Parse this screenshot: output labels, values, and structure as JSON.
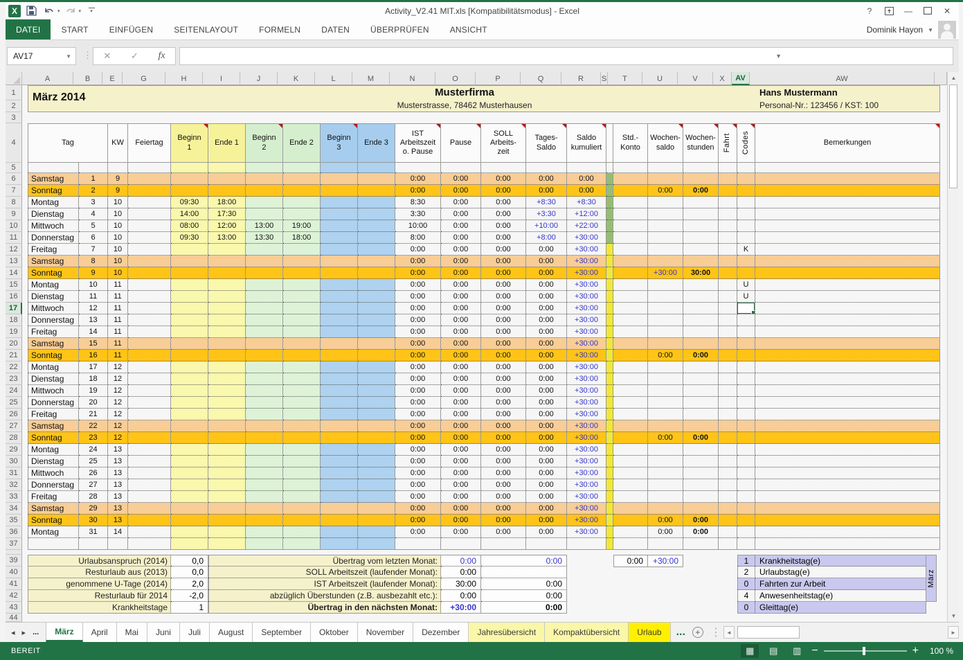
{
  "window": {
    "title": "Activity_V2.41 MIT.xls  [Kompatibilitätsmodus] - Excel",
    "user": "Dominik Hayon",
    "help": "?"
  },
  "ribbon": {
    "tabs": [
      "DATEI",
      "START",
      "EINFÜGEN",
      "SEITENLAYOUT",
      "FORMELN",
      "DATEN",
      "ÜBERPRÜFEN",
      "ANSICHT"
    ],
    "active_tab": "DATEI"
  },
  "formula_bar": {
    "name_box": "AV17",
    "formula": "",
    "fx_label": "fx"
  },
  "sheet": {
    "title_left": "März 2014",
    "company": "Musterfirma",
    "address": "Musterstrasse, 78462 Musterhausen",
    "employee": "Hans Mustermann",
    "employee_info": "Personal-Nr.: 123456 / KST: 100",
    "columns": [
      "A",
      "B",
      "E",
      "G",
      "H",
      "I",
      "J",
      "K",
      "L",
      "M",
      "N",
      "O",
      "P",
      "Q",
      "R",
      "S",
      "T",
      "U",
      "V",
      "X",
      "AV",
      "AW"
    ],
    "selected_column": "AV",
    "selected_row": 17,
    "selected_cell": "AV17",
    "header_cells": [
      {
        "label": "Tag"
      },
      {
        "label": "KW"
      },
      {
        "label": "Feiertag"
      },
      {
        "label": "Beginn\n1",
        "bg": "y",
        "note": true
      },
      {
        "label": "Ende 1",
        "bg": "y"
      },
      {
        "label": "Beginn\n2",
        "bg": "g",
        "note": true
      },
      {
        "label": "Ende 2",
        "bg": "g"
      },
      {
        "label": "Beginn\n3",
        "bg": "b",
        "note": true
      },
      {
        "label": "Ende 3",
        "bg": "b"
      },
      {
        "label": "IST\nArbeitszeit\no. Pause",
        "note": true
      },
      {
        "label": "Pause",
        "note": true
      },
      {
        "label": "SOLL\nArbeits-\nzeit",
        "note": true
      },
      {
        "label": "Tages-\nSaldo",
        "note": true
      },
      {
        "label": "Saldo\nkumuliert",
        "note": true
      },
      {
        "label": ""
      },
      {
        "label": "Std.-\nKonto"
      },
      {
        "label": "Wochen-\nsaldo",
        "note": true
      },
      {
        "label": "Wochen-\nstunden",
        "note": true
      },
      {
        "label": "Fahrt",
        "vert": true,
        "note": true
      },
      {
        "label": "Codes",
        "vert": true,
        "note": true
      },
      {
        "label": "Bemerkungen",
        "note": true
      }
    ],
    "defaults": {
      "pause": "0:00",
      "soll": "0:00"
    },
    "days": [
      {
        "d": 1,
        "n": "Samstag",
        "kw": 9,
        "t": "sat",
        "ist": "0:00",
        "ts": "0:00",
        "ks": "0:00"
      },
      {
        "d": 2,
        "n": "Sonntag",
        "kw": 9,
        "t": "sun",
        "ist": "0:00",
        "ts": "0:00",
        "ks": "0:00",
        "ws": "0:00",
        "wh": "0:00"
      },
      {
        "d": 3,
        "n": "Montag",
        "kw": 10,
        "t": "wd",
        "b1": "09:30",
        "e1": "18:00",
        "ist": "8:30",
        "ts": "+8:30",
        "ks": "+8:30"
      },
      {
        "d": 4,
        "n": "Dienstag",
        "kw": 10,
        "t": "wd",
        "b1": "14:00",
        "e1": "17:30",
        "ist": "3:30",
        "ts": "+3:30",
        "ks": "+12:00"
      },
      {
        "d": 5,
        "n": "Mittwoch",
        "kw": 10,
        "t": "wd",
        "b1": "08:00",
        "e1": "12:00",
        "b2": "13:00",
        "e2": "19:00",
        "ist": "10:00",
        "ts": "+10:00",
        "ks": "+22:00"
      },
      {
        "d": 6,
        "n": "Donnerstag",
        "kw": 10,
        "t": "wd",
        "b1": "09:30",
        "e1": "13:00",
        "b2": "13:30",
        "e2": "18:00",
        "ist": "8:00",
        "ts": "+8:00",
        "ks": "+30:00"
      },
      {
        "d": 7,
        "n": "Freitag",
        "kw": 10,
        "t": "wd",
        "ist": "0:00",
        "ts": "0:00",
        "ks": "+30:00",
        "code": "K"
      },
      {
        "d": 8,
        "n": "Samstag",
        "kw": 10,
        "t": "sat",
        "ist": "0:00",
        "ts": "0:00",
        "ks": "+30:00"
      },
      {
        "d": 9,
        "n": "Sonntag",
        "kw": 10,
        "t": "sun",
        "ist": "0:00",
        "ts": "0:00",
        "ks": "+30:00",
        "ws": "+30:00",
        "wh": "30:00"
      },
      {
        "d": 10,
        "n": "Montag",
        "kw": 11,
        "t": "wd",
        "ist": "0:00",
        "ts": "0:00",
        "ks": "+30:00",
        "code": "U"
      },
      {
        "d": 11,
        "n": "Dienstag",
        "kw": 11,
        "t": "wd",
        "ist": "0:00",
        "ts": "0:00",
        "ks": "+30:00",
        "code": "U"
      },
      {
        "d": 12,
        "n": "Mittwoch",
        "kw": 11,
        "t": "wd",
        "ist": "0:00",
        "ts": "0:00",
        "ks": "+30:00",
        "active": true
      },
      {
        "d": 13,
        "n": "Donnerstag",
        "kw": 11,
        "t": "wd",
        "ist": "0:00",
        "ts": "0:00",
        "ks": "+30:00"
      },
      {
        "d": 14,
        "n": "Freitag",
        "kw": 11,
        "t": "wd",
        "ist": "0:00",
        "ts": "0:00",
        "ks": "+30:00"
      },
      {
        "d": 15,
        "n": "Samstag",
        "kw": 11,
        "t": "sat",
        "ist": "0:00",
        "ts": "0:00",
        "ks": "+30:00"
      },
      {
        "d": 16,
        "n": "Sonntag",
        "kw": 11,
        "t": "sun",
        "ist": "0:00",
        "ts": "0:00",
        "ks": "+30:00",
        "ws": "0:00",
        "wh": "0:00"
      },
      {
        "d": 17,
        "n": "Montag",
        "kw": 12,
        "t": "wd",
        "ist": "0:00",
        "ts": "0:00",
        "ks": "+30:00"
      },
      {
        "d": 18,
        "n": "Dienstag",
        "kw": 12,
        "t": "wd",
        "ist": "0:00",
        "ts": "0:00",
        "ks": "+30:00"
      },
      {
        "d": 19,
        "n": "Mittwoch",
        "kw": 12,
        "t": "wd",
        "ist": "0:00",
        "ts": "0:00",
        "ks": "+30:00"
      },
      {
        "d": 20,
        "n": "Donnerstag",
        "kw": 12,
        "t": "wd",
        "ist": "0:00",
        "ts": "0:00",
        "ks": "+30:00"
      },
      {
        "d": 21,
        "n": "Freitag",
        "kw": 12,
        "t": "wd",
        "ist": "0:00",
        "ts": "0:00",
        "ks": "+30:00"
      },
      {
        "d": 22,
        "n": "Samstag",
        "kw": 12,
        "t": "sat",
        "ist": "0:00",
        "ts": "0:00",
        "ks": "+30:00"
      },
      {
        "d": 23,
        "n": "Sonntag",
        "kw": 12,
        "t": "sun",
        "ist": "0:00",
        "ts": "0:00",
        "ks": "+30:00",
        "ws": "0:00",
        "wh": "0:00"
      },
      {
        "d": 24,
        "n": "Montag",
        "kw": 13,
        "t": "wd",
        "ist": "0:00",
        "ts": "0:00",
        "ks": "+30:00"
      },
      {
        "d": 25,
        "n": "Dienstag",
        "kw": 13,
        "t": "wd",
        "ist": "0:00",
        "ts": "0:00",
        "ks": "+30:00"
      },
      {
        "d": 26,
        "n": "Mittwoch",
        "kw": 13,
        "t": "wd",
        "ist": "0:00",
        "ts": "0:00",
        "ks": "+30:00"
      },
      {
        "d": 27,
        "n": "Donnerstag",
        "kw": 13,
        "t": "wd",
        "ist": "0:00",
        "ts": "0:00",
        "ks": "+30:00"
      },
      {
        "d": 28,
        "n": "Freitag",
        "kw": 13,
        "t": "wd",
        "ist": "0:00",
        "ts": "0:00",
        "ks": "+30:00"
      },
      {
        "d": 29,
        "n": "Samstag",
        "kw": 13,
        "t": "sat",
        "ist": "0:00",
        "ts": "0:00",
        "ks": "+30:00"
      },
      {
        "d": 30,
        "n": "Sonntag",
        "kw": 13,
        "t": "sun",
        "ist": "0:00",
        "ts": "0:00",
        "ks": "+30:00",
        "ws": "0:00",
        "wh": "0:00"
      },
      {
        "d": 31,
        "n": "Montag",
        "kw": 14,
        "t": "wd",
        "ist": "0:00",
        "ts": "0:00",
        "ks": "+30:00",
        "ws": "0:00",
        "wh": "0:00"
      }
    ],
    "summary_left": [
      {
        "label": "Urlaubsanspruch (2014)",
        "value": "0,0"
      },
      {
        "label": "Resturlaub aus (2013)",
        "value": "0,0"
      },
      {
        "label": "genommene U-Tage (2014)",
        "value": "2,0"
      },
      {
        "label": "Resturlaub für 2014",
        "value": "-2,0"
      },
      {
        "label": "Krankheitstage",
        "value": "1"
      }
    ],
    "summary_mid": [
      {
        "label": "Übertrag vom letzten Monat:",
        "v1": "0:00",
        "v2": "0:00",
        "blue1": true,
        "blue2": true
      },
      {
        "label": "SOLL Arbeitszeit (laufender Monat):",
        "v1": "0:00",
        "v2": ""
      },
      {
        "label": "IST Arbeitszeit (laufender Monat):",
        "v1": "30:00",
        "v2": "0:00"
      },
      {
        "label": "abzüglich Überstunden (z.B. ausbezahlt etc.):",
        "v1": "0:00",
        "v2": "0:00"
      },
      {
        "label": "Übertrag in den nächsten Monat:",
        "v1": "+30:00",
        "v2": "0:00",
        "blue1": true,
        "bold": true
      }
    ],
    "carry_box": {
      "v1": "0:00",
      "v2": "+30:00"
    },
    "codes_legend": {
      "rows": [
        {
          "count": "1",
          "label": "Krankheitstag(e)"
        },
        {
          "count": "2",
          "label": "Urlaubstag(e)"
        },
        {
          "count": "0",
          "label": "Fahrten zur Arbeit"
        },
        {
          "count": "4",
          "label": "Anwesenheitstag(e)"
        },
        {
          "count": "0",
          "label": "Gleittag(e)"
        }
      ],
      "month_label": "März"
    }
  },
  "sheet_tabs": {
    "overflow_left": "...",
    "items": [
      {
        "label": "März",
        "active": true
      },
      {
        "label": "April"
      },
      {
        "label": "Mai"
      },
      {
        "label": "Juni"
      },
      {
        "label": "Juli"
      },
      {
        "label": "August"
      },
      {
        "label": "September"
      },
      {
        "label": "Oktober"
      },
      {
        "label": "November"
      },
      {
        "label": "Dezember"
      },
      {
        "label": "Jahresübersicht",
        "highlight": "pale"
      },
      {
        "label": "Kompaktübersicht",
        "highlight": "pale"
      },
      {
        "label": "Urlaub",
        "highlight": "bright"
      }
    ],
    "overflow_right": "..."
  },
  "status_bar": {
    "mode": "BEREIT",
    "zoom": "100 %"
  }
}
